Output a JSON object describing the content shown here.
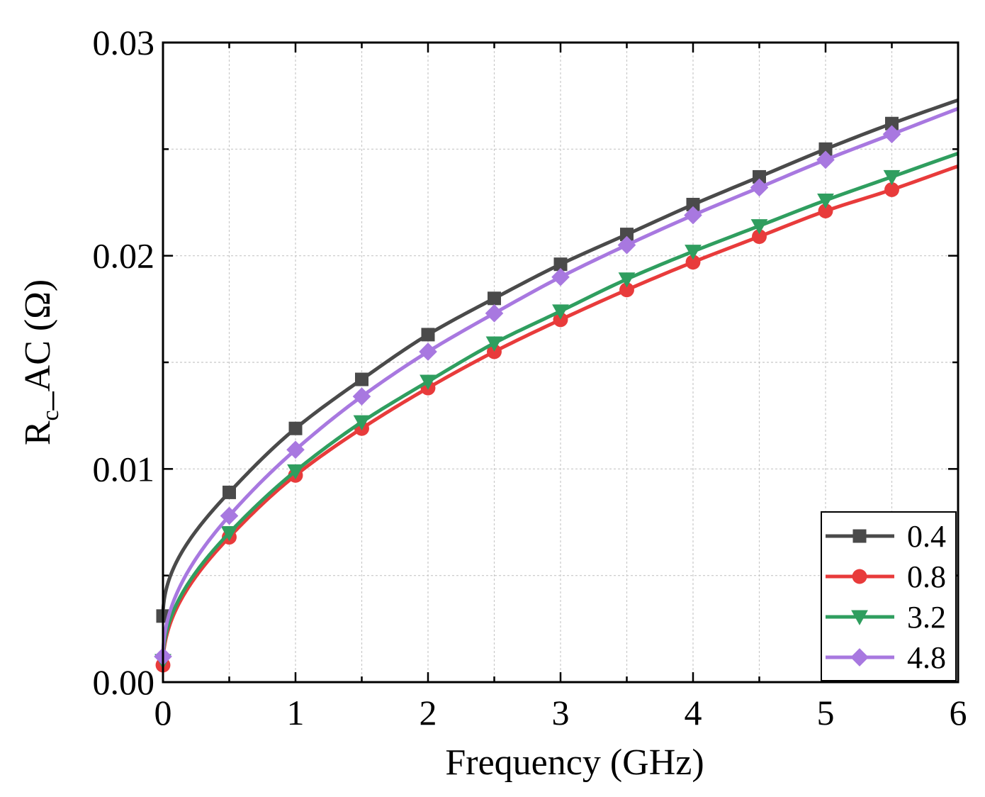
{
  "chart_data": {
    "type": "line",
    "title": "",
    "xlabel": "Frequency (GHz)",
    "ylabel": {
      "main": "R",
      "subscript": "c",
      "rest": "_AC (Ω)"
    },
    "xlim": [
      0,
      6
    ],
    "ylim": [
      0,
      0.03
    ],
    "xticks": [
      0,
      1,
      2,
      3,
      4,
      5,
      6
    ],
    "xtick_labels": [
      "0",
      "1",
      "2",
      "3",
      "4",
      "5",
      "6"
    ],
    "yticks": [
      0,
      0.01,
      0.02,
      0.03
    ],
    "ytick_labels": [
      "0.00",
      "0.01",
      "0.02",
      "0.03"
    ],
    "grid": true,
    "legend_position": "bottom-right",
    "marker_x": [
      0,
      0.5,
      1,
      1.5,
      2,
      2.5,
      3,
      3.5,
      4,
      4.5,
      5,
      5.5
    ],
    "series": [
      {
        "name": "0.4",
        "color": "#4a4a4a",
        "marker": "square",
        "x": [
          0,
          0.5,
          1,
          1.5,
          2,
          2.5,
          3,
          3.5,
          4,
          4.5,
          5,
          5.5,
          6
        ],
        "values": [
          0.0031,
          0.0089,
          0.0119,
          0.0142,
          0.0163,
          0.018,
          0.0196,
          0.021,
          0.0224,
          0.0237,
          0.025,
          0.0262,
          0.0273
        ]
      },
      {
        "name": "0.8",
        "color": "#e83b3b",
        "marker": "circle",
        "x": [
          0,
          0.5,
          1,
          1.5,
          2,
          2.5,
          3,
          3.5,
          4,
          4.5,
          5,
          5.5,
          6
        ],
        "values": [
          0.0008,
          0.0068,
          0.0097,
          0.0119,
          0.0138,
          0.0155,
          0.017,
          0.0184,
          0.0197,
          0.0209,
          0.0221,
          0.0231,
          0.0242
        ]
      },
      {
        "name": "3.2",
        "color": "#2f9e5f",
        "marker": "triangle-down",
        "x": [
          0,
          0.5,
          1,
          1.5,
          2,
          2.5,
          3,
          3.5,
          4,
          4.5,
          5,
          5.5,
          6
        ],
        "values": [
          0.001,
          0.007,
          0.0099,
          0.0122,
          0.0141,
          0.0159,
          0.0174,
          0.0189,
          0.0202,
          0.0214,
          0.0226,
          0.0237,
          0.0248
        ]
      },
      {
        "name": "4.8",
        "color": "#a878e0",
        "marker": "diamond",
        "x": [
          0,
          0.5,
          1,
          1.5,
          2,
          2.5,
          3,
          3.5,
          4,
          4.5,
          5,
          5.5,
          6
        ],
        "values": [
          0.0012,
          0.0078,
          0.0109,
          0.0134,
          0.0155,
          0.0173,
          0.019,
          0.0205,
          0.0219,
          0.0232,
          0.0245,
          0.0257,
          0.0269
        ]
      }
    ]
  }
}
